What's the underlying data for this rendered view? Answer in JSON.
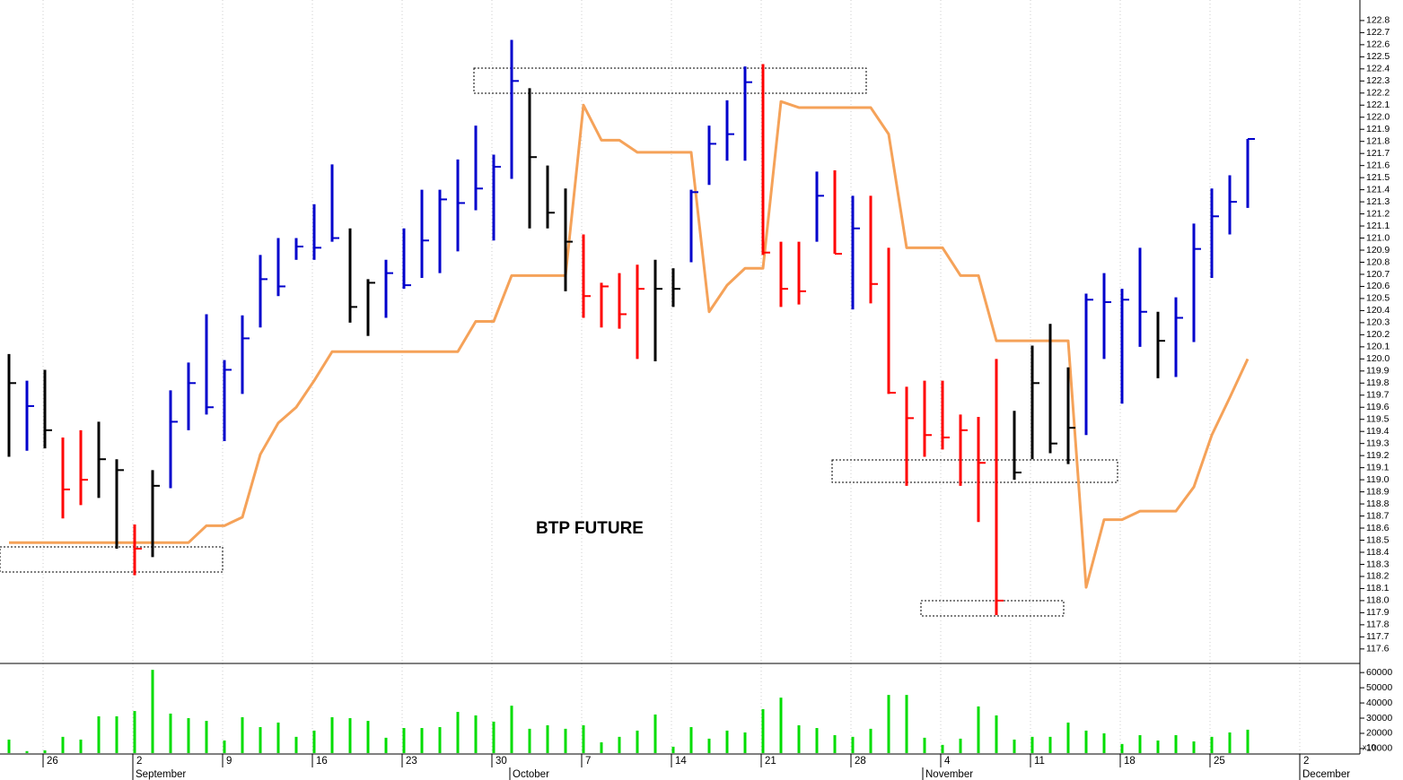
{
  "chart_data": [
    {
      "type": "ohlc",
      "title": "BTP FUTURE",
      "categories": [
        null,
        null,
        "26",
        null,
        null,
        null,
        null,
        "2",
        null,
        null,
        null,
        null,
        "9",
        null,
        null,
        null,
        null,
        "16",
        null,
        null,
        null,
        null,
        "23",
        null,
        null,
        null,
        null,
        "30",
        null,
        null,
        null,
        null,
        "7",
        null,
        null,
        null,
        null,
        "14",
        null,
        null,
        null,
        null,
        "21",
        null,
        null,
        null,
        null,
        "28",
        null,
        null,
        null,
        null,
        "4",
        null,
        null,
        null,
        null,
        "11",
        null,
        null,
        null,
        null,
        "18",
        null,
        null,
        null,
        null,
        "25",
        null,
        null,
        null,
        null,
        "2",
        null,
        null,
        null
      ],
      "month_labels": [
        {
          "index": 7,
          "label": "September"
        },
        {
          "index": 28,
          "label": "October"
        },
        {
          "index": 51,
          "label": "November"
        },
        {
          "index": 72,
          "label": "December"
        }
      ],
      "high": [
        120.04,
        119.82,
        119.91,
        119.35,
        119.41,
        119.48,
        119.17,
        118.63,
        119.08,
        119.74,
        119.97,
        120.37,
        119.99,
        120.36,
        120.86,
        121.0,
        121.0,
        121.28,
        121.61,
        121.08,
        120.66,
        120.82,
        121.08,
        121.4,
        121.4,
        121.65,
        121.93,
        121.69,
        122.64,
        122.24,
        121.6,
        121.41,
        121.03,
        120.63,
        120.71,
        120.78,
        120.82,
        120.75,
        121.4,
        121.93,
        122.14,
        122.42,
        122.44,
        120.97,
        120.97,
        121.55,
        121.56,
        121.35,
        121.35,
        120.92,
        119.77,
        119.82,
        119.82,
        119.54,
        119.52,
        120.0,
        119.57,
        120.11,
        120.29,
        119.93,
        120.54,
        120.71,
        120.58,
        120.92,
        120.39,
        120.51,
        121.12,
        121.41,
        121.52,
        121.82,
        null,
        null,
        null,
        null,
        null,
        null
      ],
      "low": [
        119.19,
        119.24,
        119.26,
        118.68,
        118.79,
        118.85,
        118.43,
        118.21,
        118.36,
        118.93,
        119.41,
        119.54,
        119.32,
        119.71,
        120.26,
        120.52,
        120.82,
        120.82,
        120.97,
        120.3,
        120.19,
        120.34,
        120.58,
        120.67,
        120.71,
        120.89,
        121.23,
        120.98,
        121.49,
        121.08,
        121.08,
        120.56,
        120.34,
        120.26,
        120.25,
        120.0,
        119.98,
        120.43,
        120.8,
        121.44,
        121.64,
        121.64,
        120.86,
        120.43,
        120.45,
        120.97,
        120.87,
        120.41,
        120.46,
        119.71,
        118.95,
        119.19,
        119.25,
        118.95,
        118.65,
        117.88,
        119.0,
        119.17,
        119.22,
        119.13,
        119.37,
        120.0,
        119.63,
        120.1,
        119.84,
        119.85,
        120.14,
        120.67,
        121.03,
        121.25,
        null,
        null,
        null,
        null,
        null,
        null
      ],
      "close": [
        119.8,
        119.61,
        119.41,
        118.92,
        119.0,
        119.17,
        119.08,
        118.43,
        118.95,
        119.48,
        119.8,
        119.6,
        119.91,
        120.17,
        120.66,
        120.6,
        120.93,
        120.92,
        121.0,
        120.43,
        120.63,
        120.71,
        120.61,
        120.98,
        121.32,
        121.29,
        121.41,
        121.59,
        122.3,
        121.67,
        121.21,
        120.97,
        120.52,
        120.6,
        120.37,
        120.58,
        120.58,
        120.58,
        121.38,
        121.78,
        121.86,
        122.29,
        120.88,
        120.58,
        120.56,
        121.35,
        120.87,
        121.08,
        120.62,
        119.72,
        119.51,
        119.37,
        119.35,
        119.41,
        119.14,
        118.0,
        119.06,
        119.8,
        119.3,
        119.43,
        120.49,
        120.47,
        120.49,
        120.39,
        120.15,
        120.34,
        120.91,
        121.18,
        121.3,
        121.82,
        null,
        null,
        null,
        null,
        null,
        null
      ],
      "bar_colors": [
        "#000000",
        "#0000cc",
        "#000000",
        "#ff0000",
        "#ff0000",
        "#000000",
        "#000000",
        "#ff0000",
        "#000000",
        "#0000cc",
        "#0000cc",
        "#0000cc",
        "#0000cc",
        "#0000cc",
        "#0000cc",
        "#0000cc",
        "#0000cc",
        "#0000cc",
        "#0000cc",
        "#000000",
        "#000000",
        "#0000cc",
        "#0000cc",
        "#0000cc",
        "#0000cc",
        "#0000cc",
        "#0000cc",
        "#0000cc",
        "#0000cc",
        "#000000",
        "#000000",
        "#000000",
        "#ff0000",
        "#ff0000",
        "#ff0000",
        "#ff0000",
        "#000000",
        "#000000",
        "#0000cc",
        "#0000cc",
        "#0000cc",
        "#0000cc",
        "#ff0000",
        "#ff0000",
        "#ff0000",
        "#0000cc",
        "#ff0000",
        "#0000cc",
        "#ff0000",
        "#ff0000",
        "#ff0000",
        "#ff0000",
        "#ff0000",
        "#ff0000",
        "#ff0000",
        "#ff0000",
        "#000000",
        "#000000",
        "#000000",
        "#000000",
        "#0000cc",
        "#0000cc",
        "#0000cc",
        "#0000cc",
        "#000000",
        "#0000cc",
        "#0000cc",
        "#0000cc",
        "#0000cc",
        "#0000cc",
        null,
        null,
        null,
        null,
        null,
        null
      ],
      "line": {
        "color": "#f5a259",
        "values": [
          118.48,
          118.48,
          118.48,
          118.48,
          118.48,
          118.48,
          118.48,
          118.48,
          118.48,
          118.48,
          118.48,
          118.62,
          118.62,
          118.69,
          119.21,
          119.47,
          119.6,
          119.82,
          120.06,
          120.06,
          120.06,
          120.06,
          120.06,
          120.06,
          120.06,
          120.06,
          120.31,
          120.31,
          120.69,
          120.69,
          120.69,
          120.69,
          122.1,
          121.81,
          121.81,
          121.71,
          121.71,
          121.71,
          121.71,
          120.39,
          120.61,
          120.75,
          120.75,
          122.13,
          122.08,
          122.08,
          122.08,
          122.08,
          122.08,
          121.86,
          120.92,
          120.92,
          120.92,
          120.69,
          120.69,
          120.15,
          120.15,
          120.15,
          120.15,
          120.15,
          118.11,
          118.67,
          118.67,
          118.74,
          118.74,
          118.74,
          118.94,
          119.37,
          119.68,
          120.0,
          null,
          null,
          null,
          null,
          null,
          null
        ]
      },
      "ylim": [
        117.48,
        122.97
      ],
      "yticks": [
        117.6,
        117.7,
        117.8,
        117.9,
        {
          "value": 118,
          "label": "118.0"
        },
        118.1,
        118.2,
        118.3,
        118.4,
        118.5,
        118.6,
        118.7,
        118.8,
        118.9,
        {
          "value": 119,
          "label": "119.0"
        },
        119.1,
        119.2,
        119.3,
        119.4,
        119.5,
        119.6,
        119.7,
        119.8,
        119.9,
        {
          "value": 120,
          "label": "120.0"
        },
        120.1,
        120.2,
        120.3,
        120.4,
        120.5,
        120.6,
        120.7,
        120.8,
        120.9,
        {
          "value": 121,
          "label": "121.0"
        },
        121.1,
        121.2,
        121.3,
        121.4,
        121.5,
        121.6,
        121.7,
        121.8,
        121.9,
        {
          "value": 122,
          "label": "122.0"
        },
        122.1,
        122.2,
        122.3,
        122.4,
        122.5,
        122.6,
        122.7,
        122.8
      ]
    },
    {
      "type": "bar",
      "color": "#00dd00",
      "note": "x10",
      "values": [
        15900,
        8300,
        8800,
        17700,
        15900,
        31200,
        31200,
        34700,
        61800,
        33000,
        30000,
        28200,
        15300,
        30600,
        24100,
        27100,
        17700,
        21800,
        30600,
        30000,
        28200,
        17100,
        23500,
        23500,
        24100,
        34100,
        31800,
        27700,
        38200,
        23000,
        25300,
        23000,
        25300,
        14100,
        17700,
        21800,
        32400,
        11200,
        24100,
        16500,
        21800,
        20600,
        35900,
        43500,
        25300,
        23500,
        18800,
        17700,
        23000,
        45300,
        45300,
        17100,
        12400,
        16500,
        37700,
        31800,
        15900,
        17700,
        17700,
        27100,
        21800,
        20000,
        13000,
        18800,
        15300,
        18800,
        14700,
        17700,
        20600,
        22400,
        null,
        null,
        null,
        null,
        null,
        null
      ],
      "ylim": [
        7000,
        66000
      ],
      "yticks": [
        10000,
        20000,
        30000,
        40000,
        50000,
        60000
      ]
    }
  ]
}
